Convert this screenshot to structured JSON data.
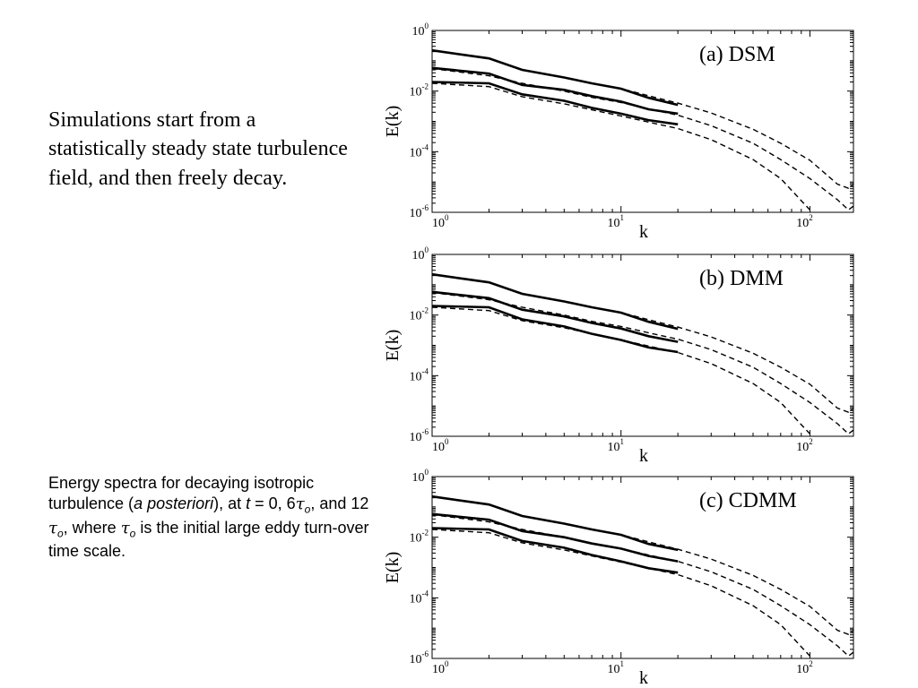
{
  "intro_text": "Simulations start from a statistically steady state turbulence field, and then freely decay.",
  "caption": {
    "part1": "Energy spectra for decaying isotropic turbulence (",
    "italic": "a posteriori",
    "part2": "), at ",
    "t": "t",
    "eq": " = 0, 6",
    "tau": "τ",
    "sub_o": "o",
    "part3": ", and 12 ",
    "part4": ", where ",
    "part5": " is the initial large eddy turn-over time scale."
  },
  "chart_data": [
    {
      "type": "line",
      "panel_label": "(a)  DSM",
      "xlabel": "k",
      "ylabel": "E(k)",
      "xscale": "log",
      "yscale": "log",
      "xlim": [
        1,
        170
      ],
      "ylim": [
        1e-06,
        1
      ],
      "x_ticks": [
        1,
        10,
        100
      ],
      "x_tick_labels": [
        "10",
        "10",
        "10"
      ],
      "x_tick_exps": [
        "0",
        "1",
        "2"
      ],
      "y_ticks": [
        1,
        0.01,
        0.0001,
        1e-06
      ],
      "y_tick_labels": [
        "10",
        "10",
        "10",
        "10"
      ],
      "y_tick_exps": [
        "0",
        "-2",
        "-4",
        "-6"
      ],
      "series": [
        {
          "style": "solid",
          "x": [
            1,
            2,
            3,
            5,
            7,
            10,
            14,
            20
          ],
          "y": [
            0.22,
            0.12,
            0.05,
            0.028,
            0.018,
            0.012,
            0.006,
            0.0035
          ]
        },
        {
          "style": "solid",
          "x": [
            1,
            2,
            3,
            5,
            7,
            10,
            14,
            20
          ],
          "y": [
            0.058,
            0.038,
            0.016,
            0.011,
            0.0068,
            0.0045,
            0.0025,
            0.0018
          ]
        },
        {
          "style": "solid",
          "x": [
            1,
            2,
            3,
            5,
            7,
            10,
            14,
            20
          ],
          "y": [
            0.02,
            0.018,
            0.0078,
            0.0048,
            0.0028,
            0.0018,
            0.0011,
            0.0008
          ]
        },
        {
          "style": "dashed",
          "x": [
            1,
            2,
            3,
            5,
            7,
            10,
            14,
            20,
            30,
            50,
            70,
            100,
            140,
            160,
            170
          ],
          "y": [
            0.22,
            0.12,
            0.05,
            0.028,
            0.018,
            0.012,
            0.007,
            0.004,
            0.0019,
            0.00055,
            0.00019,
            5.2e-05,
            8.5e-06,
            6.2e-06,
            8.5e-06
          ]
        },
        {
          "style": "dashed",
          "x": [
            1,
            2,
            3,
            5,
            7,
            10,
            14,
            20,
            30,
            50,
            70,
            100,
            140,
            160,
            170
          ],
          "y": [
            0.055,
            0.032,
            0.018,
            0.01,
            0.0062,
            0.0042,
            0.0026,
            0.0016,
            0.00072,
            0.00019,
            5.5e-05,
            1.3e-05,
            2.6e-06,
            1.2e-06,
            1.6e-06
          ]
        },
        {
          "style": "dashed",
          "x": [
            1,
            2,
            3,
            5,
            7,
            10,
            14,
            20,
            30,
            50,
            70,
            100
          ],
          "y": [
            0.018,
            0.014,
            0.0065,
            0.0038,
            0.0024,
            0.0015,
            0.00095,
            0.00058,
            0.00025,
            5.5e-05,
            1.3e-05,
            1.2e-06
          ]
        }
      ]
    },
    {
      "type": "line",
      "panel_label": "(b)  DMM",
      "xlabel": "k",
      "ylabel": "E(k)",
      "xscale": "log",
      "yscale": "log",
      "xlim": [
        1,
        170
      ],
      "ylim": [
        1e-06,
        1
      ],
      "x_ticks": [
        1,
        10,
        100
      ],
      "x_tick_labels": [
        "10",
        "10",
        "10"
      ],
      "x_tick_exps": [
        "0",
        "1",
        "2"
      ],
      "y_ticks": [
        1,
        0.01,
        0.0001,
        1e-06
      ],
      "y_tick_labels": [
        "10",
        "10",
        "10",
        "10"
      ],
      "y_tick_exps": [
        "0",
        "-2",
        "-4",
        "-6"
      ],
      "series": [
        {
          "style": "solid",
          "x": [
            1,
            2,
            3,
            5,
            7,
            10,
            14,
            20
          ],
          "y": [
            0.22,
            0.12,
            0.05,
            0.028,
            0.018,
            0.012,
            0.006,
            0.0035
          ]
        },
        {
          "style": "solid",
          "x": [
            1,
            2,
            3,
            5,
            7,
            10,
            14,
            20
          ],
          "y": [
            0.058,
            0.036,
            0.015,
            0.009,
            0.0055,
            0.0036,
            0.002,
            0.0013
          ]
        },
        {
          "style": "solid",
          "x": [
            1,
            2,
            3,
            5,
            7,
            10,
            14,
            20
          ],
          "y": [
            0.02,
            0.018,
            0.0072,
            0.0042,
            0.0024,
            0.0015,
            0.00085,
            0.0006
          ]
        },
        {
          "style": "dashed",
          "x": [
            1,
            2,
            3,
            5,
            7,
            10,
            14,
            20,
            30,
            50,
            70,
            100,
            140,
            160,
            170
          ],
          "y": [
            0.22,
            0.12,
            0.05,
            0.028,
            0.018,
            0.012,
            0.007,
            0.004,
            0.0019,
            0.00055,
            0.00019,
            5.2e-05,
            8.5e-06,
            6.2e-06,
            8.5e-06
          ]
        },
        {
          "style": "dashed",
          "x": [
            1,
            2,
            3,
            5,
            7,
            10,
            14,
            20,
            30,
            50,
            70,
            100,
            140,
            160,
            170
          ],
          "y": [
            0.055,
            0.032,
            0.018,
            0.01,
            0.0062,
            0.0042,
            0.0026,
            0.0016,
            0.00072,
            0.00019,
            5.5e-05,
            1.3e-05,
            2.6e-06,
            1.2e-06,
            1.6e-06
          ]
        },
        {
          "style": "dashed",
          "x": [
            1,
            2,
            3,
            5,
            7,
            10,
            14,
            20,
            30,
            50,
            70,
            100
          ],
          "y": [
            0.018,
            0.014,
            0.0065,
            0.0038,
            0.0024,
            0.0015,
            0.00095,
            0.00058,
            0.00025,
            5.5e-05,
            1.3e-05,
            1.2e-06
          ]
        }
      ]
    },
    {
      "type": "line",
      "panel_label": "(c)  CDMM",
      "xlabel": "k",
      "ylabel": "E(k)",
      "xscale": "log",
      "yscale": "log",
      "xlim": [
        1,
        170
      ],
      "ylim": [
        1e-06,
        1
      ],
      "x_ticks": [
        1,
        10,
        100
      ],
      "x_tick_labels": [
        "10",
        "10",
        "10"
      ],
      "x_tick_exps": [
        "0",
        "1",
        "2"
      ],
      "y_ticks": [
        1,
        0.01,
        0.0001,
        1e-06
      ],
      "y_tick_labels": [
        "10",
        "10",
        "10",
        "10"
      ],
      "y_tick_exps": [
        "0",
        "-2",
        "-4",
        "-6"
      ],
      "series": [
        {
          "style": "solid",
          "x": [
            1,
            2,
            3,
            5,
            7,
            10,
            14,
            20
          ],
          "y": [
            0.22,
            0.12,
            0.05,
            0.028,
            0.018,
            0.012,
            0.006,
            0.0038
          ]
        },
        {
          "style": "solid",
          "x": [
            1,
            2,
            3,
            5,
            7,
            10,
            14,
            20
          ],
          "y": [
            0.058,
            0.038,
            0.016,
            0.01,
            0.0062,
            0.0042,
            0.0024,
            0.0016
          ]
        },
        {
          "style": "solid",
          "x": [
            1,
            2,
            3,
            5,
            7,
            10,
            14,
            20
          ],
          "y": [
            0.02,
            0.018,
            0.0075,
            0.0045,
            0.0026,
            0.0016,
            0.00095,
            0.00068
          ]
        },
        {
          "style": "dashed",
          "x": [
            1,
            2,
            3,
            5,
            7,
            10,
            14,
            20,
            30,
            50,
            70,
            100,
            140,
            160,
            170
          ],
          "y": [
            0.22,
            0.12,
            0.05,
            0.028,
            0.018,
            0.012,
            0.007,
            0.004,
            0.0019,
            0.00055,
            0.00019,
            5.2e-05,
            8.5e-06,
            6.2e-06,
            8.5e-06
          ]
        },
        {
          "style": "dashed",
          "x": [
            1,
            2,
            3,
            5,
            7,
            10,
            14,
            20,
            30,
            50,
            70,
            100,
            140,
            160,
            170
          ],
          "y": [
            0.055,
            0.032,
            0.018,
            0.01,
            0.0062,
            0.0042,
            0.0026,
            0.0016,
            0.00072,
            0.00019,
            5.5e-05,
            1.3e-05,
            2.6e-06,
            1.2e-06,
            1.6e-06
          ]
        },
        {
          "style": "dashed",
          "x": [
            1,
            2,
            3,
            5,
            7,
            10,
            14,
            20,
            30,
            50,
            70,
            100
          ],
          "y": [
            0.018,
            0.014,
            0.0065,
            0.0038,
            0.0024,
            0.0015,
            0.00095,
            0.00058,
            0.00025,
            5.5e-05,
            1.3e-05,
            1.2e-06
          ]
        }
      ]
    }
  ]
}
